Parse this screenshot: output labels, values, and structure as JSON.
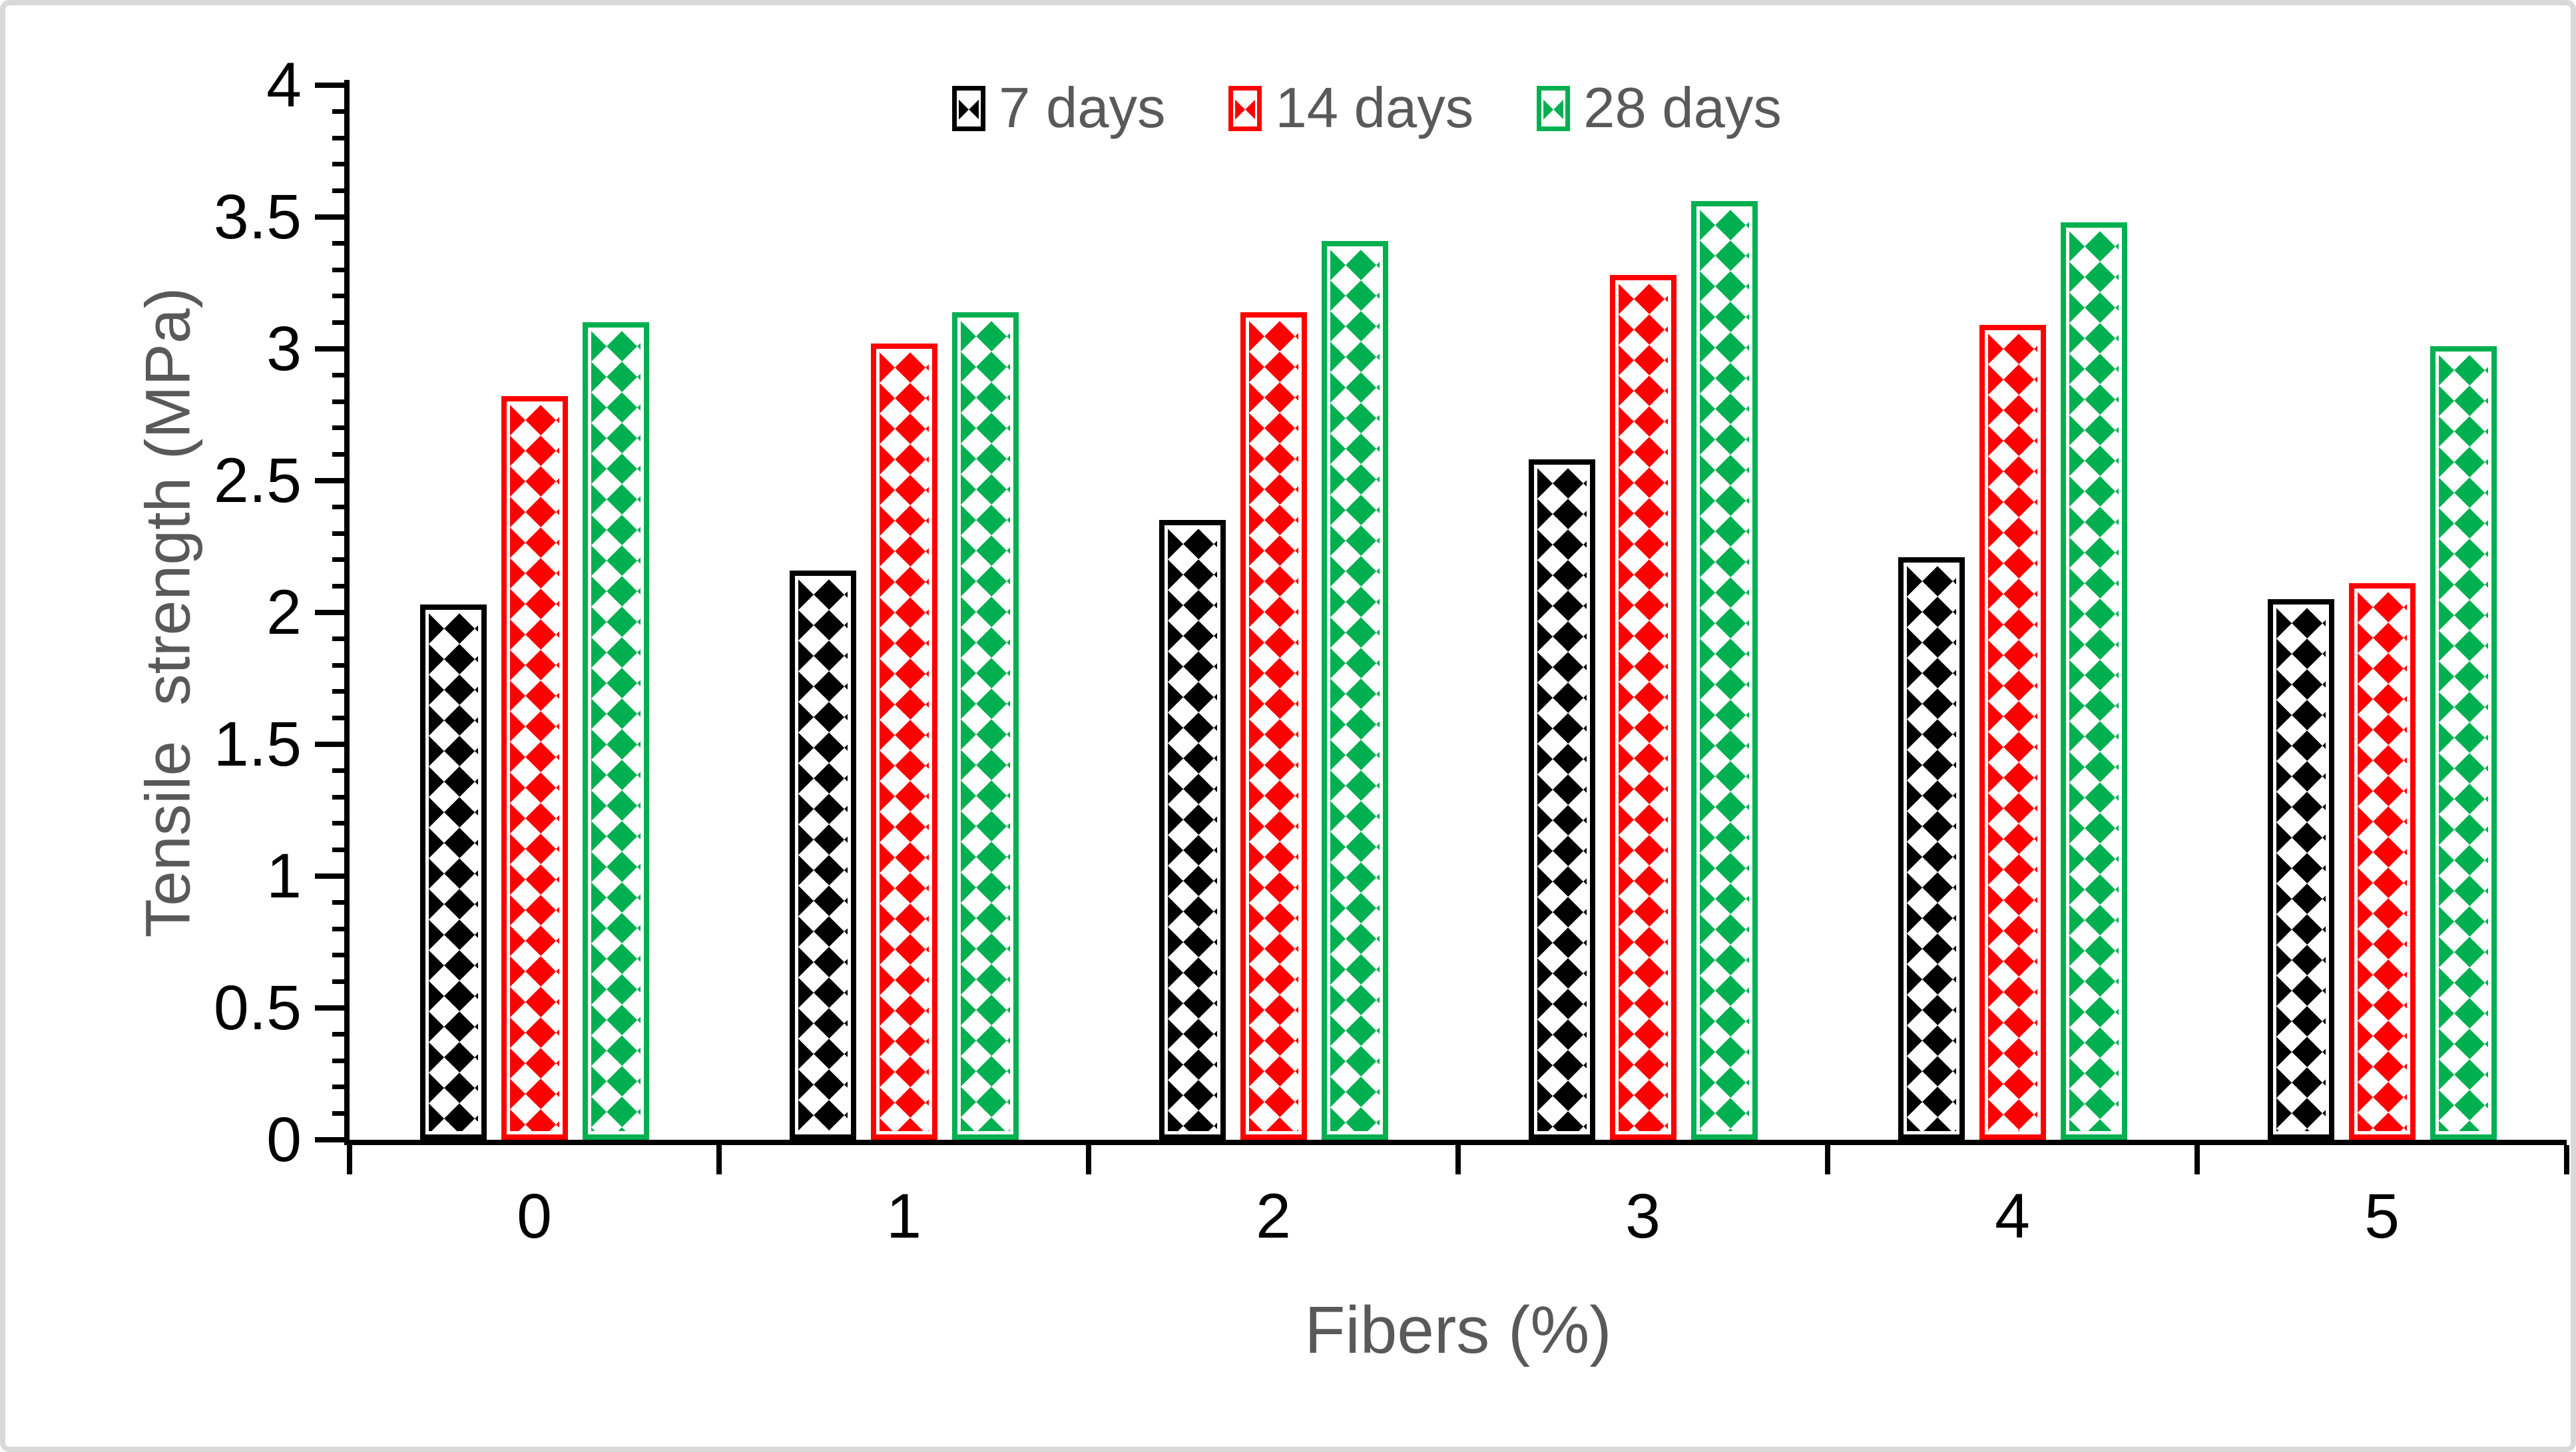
{
  "chart_data": {
    "type": "bar",
    "title": "",
    "categories": [
      "0",
      "1",
      "2",
      "3",
      "4",
      "5"
    ],
    "series": [
      {
        "name": "7 days",
        "color": "#000000",
        "values": [
          2.03,
          2.16,
          2.35,
          2.58,
          2.21,
          2.05
        ]
      },
      {
        "name": "14 days",
        "color": "#ff0000",
        "values": [
          2.82,
          3.02,
          3.14,
          3.28,
          3.09,
          2.11
        ]
      },
      {
        "name": "28 days",
        "color": "#00b050",
        "values": [
          3.1,
          3.14,
          3.41,
          3.56,
          3.48,
          3.01
        ]
      }
    ],
    "xlabel": "Fibers (%)",
    "ylabel": "Tensile  strength (MPa)",
    "ylim": [
      0,
      4
    ],
    "ytick_step": 0.5,
    "yminor_step": 0.1,
    "ytick_labels": [
      "0",
      "0.5",
      "1",
      "1.5",
      "2",
      "2.5",
      "3",
      "3.5",
      "4"
    ],
    "legend_position": "top-center",
    "grid": false,
    "bar_fill_pattern": "diamond-checker",
    "bar_outline_follows_series_color": true,
    "text_color_titles": "#595959",
    "text_color_ticks": "#000000",
    "axis_color": "#000000",
    "figure_border_color": "#d9d9d9",
    "background_color": "#ffffff"
  }
}
